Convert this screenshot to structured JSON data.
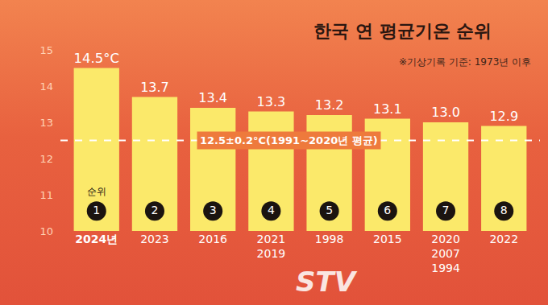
{
  "chart_data": {
    "type": "bar",
    "title": "한국 연 평균기온 순위",
    "subtitle": "※기상기록 기준: 1973년 이후",
    "categories": [
      "2024년",
      "2023",
      "2016",
      "2021\n2019",
      "1998",
      "2015",
      "2020\n2007\n1994",
      "2022"
    ],
    "values": [
      14.5,
      13.7,
      13.4,
      13.3,
      13.2,
      13.1,
      13.0,
      12.9
    ],
    "value_labels": [
      "14.5°C",
      "13.7",
      "13.4",
      "13.3",
      "13.2",
      "13.1",
      "13.0",
      "12.9"
    ],
    "data_labels": true,
    "color": "#fbe96a",
    "ylim": [
      10,
      15
    ],
    "yticks": [
      10,
      11,
      12,
      13,
      14,
      15
    ],
    "grid": false,
    "reference_line": {
      "value": 12.5,
      "label": "12.5±0.2°C(1991~2020년 평균)"
    },
    "ranks": [
      1,
      2,
      3,
      4,
      5,
      6,
      7,
      8
    ],
    "rank_label": "순위",
    "watermark": "STV"
  }
}
